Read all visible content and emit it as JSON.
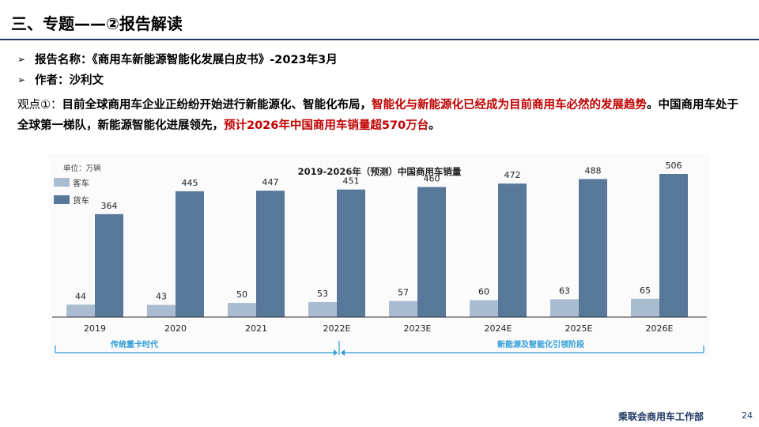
{
  "slide": {
    "title": "三、专题——②报告解读",
    "bullets": [
      "报告名称：《商用车新能源智能化发展白皮书》-2023年3月",
      "作者：沙利文"
    ],
    "paragraph": {
      "prefix": "观点①：",
      "text1": "目前全球商用车企业正纷纷开始进行新能源化、智能化布局，",
      "highlight1": "智能化与新能源化已经成为目前商用车必然的发展趋势",
      "text2": "。中国商用车处于全球第一梯队，新能源智能化进展领先，",
      "highlight2": "预计2026年中国商用车销量超570万台",
      "text3": "。"
    },
    "footer": {
      "org": "乘联会商用车工作部",
      "page": "24"
    },
    "colors": {
      "accent_red": "#c00000",
      "title_rule": "#1f3864"
    }
  },
  "chart_data": {
    "type": "bar",
    "title": "2019-2026年（预测）中国商用车销量",
    "unit_label": "单位：万辆",
    "categories": [
      "2019",
      "2020",
      "2021",
      "2022E",
      "2023E",
      "2024E",
      "2025E",
      "2026E"
    ],
    "series": [
      {
        "name": "客车",
        "values": [
          44,
          43,
          50,
          53,
          57,
          60,
          63,
          65
        ],
        "color": "#a9bcd0"
      },
      {
        "name": "货车",
        "values": [
          364,
          445,
          447,
          451,
          460,
          472,
          488,
          506
        ],
        "color": "#587899"
      }
    ],
    "ylim": [
      0,
      520
    ],
    "legend_position": "top-left",
    "grid": false,
    "periods": [
      {
        "label": "传统重卡时代",
        "from": "2019",
        "to": "2022E"
      },
      {
        "label": "新能源及智能化引领阶段",
        "from": "2022E",
        "to": "2026E"
      }
    ],
    "period_color": "#2e9bd6"
  }
}
